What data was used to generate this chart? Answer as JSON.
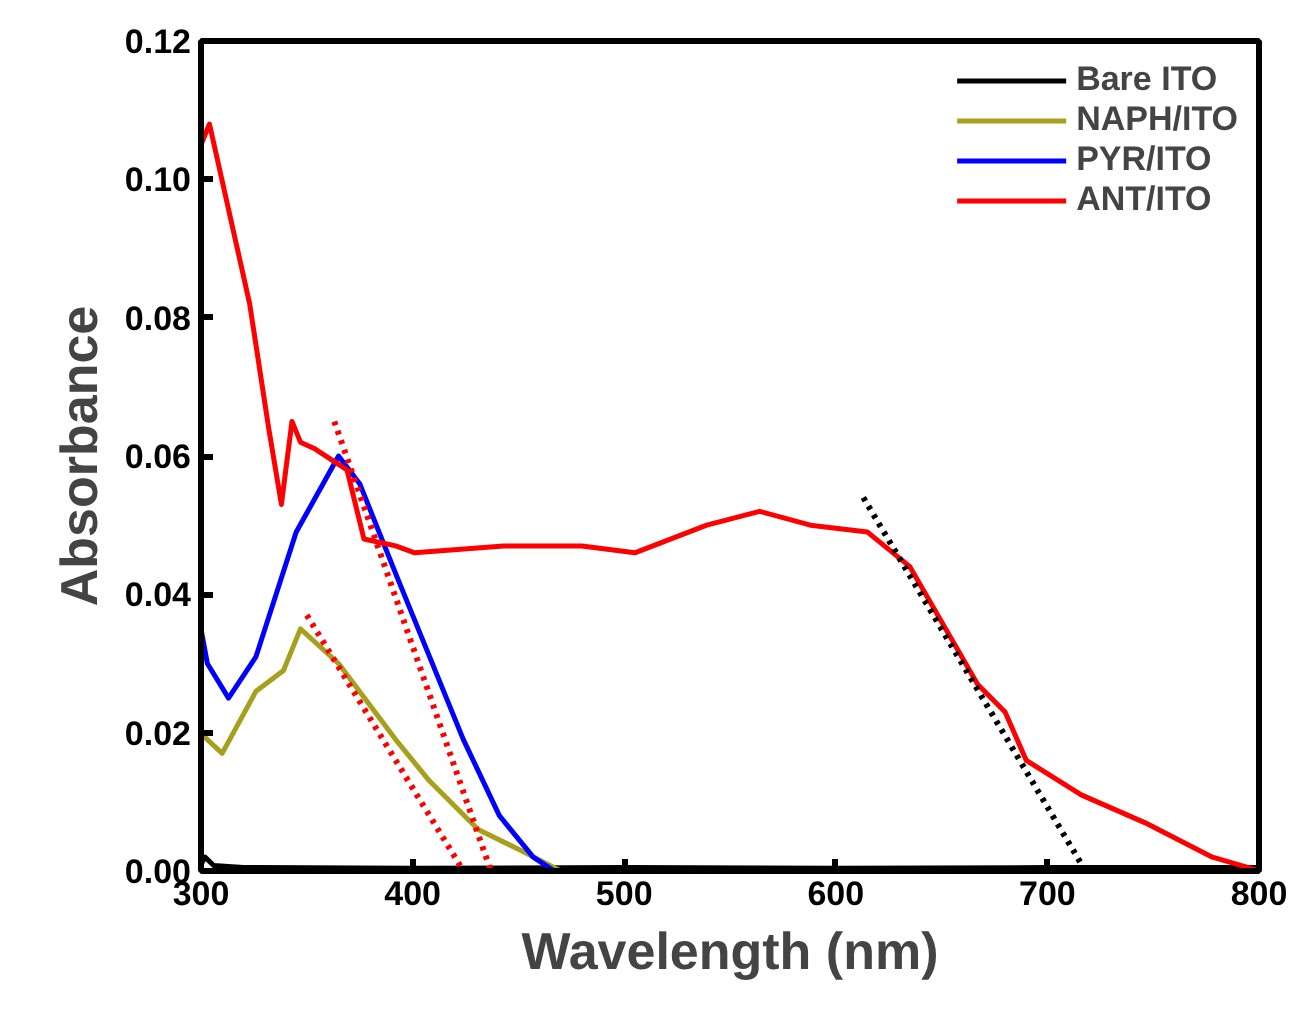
{
  "chart_data": {
    "type": "line",
    "xlabel": "Wavelength (nm)",
    "ylabel": "Absorbance",
    "xlim": [
      300,
      800
    ],
    "ylim": [
      0,
      0.12
    ],
    "xticks": [
      300,
      400,
      500,
      600,
      700,
      800
    ],
    "yticks": [
      {
        "value": 0,
        "label": "0.00"
      },
      {
        "value": 0.02,
        "label": "0.02"
      },
      {
        "value": 0.04,
        "label": "0.04"
      },
      {
        "value": 0.06,
        "label": "0.06"
      },
      {
        "value": 0.08,
        "label": "0.08"
      },
      {
        "value": 0.1,
        "label": "0.10"
      },
      {
        "value": 0.12,
        "label": "0.12"
      }
    ],
    "grid": false,
    "legend": "top right",
    "marker": "none",
    "series": [
      {
        "name": "Bare ITO",
        "color": "#000000",
        "line_style": "solid",
        "x": [
          300,
          302,
          306,
          320,
          400,
          500,
          600,
          700,
          800
        ],
        "values": [
          0.001,
          0.002,
          0.0008,
          0.0005,
          0.0004,
          0.0005,
          0.0004,
          0.0005,
          0.0005
        ]
      },
      {
        "name": "NAPH/ITO",
        "color": "#a6a01c",
        "line_style": "solid",
        "x": [
          300,
          303,
          310,
          326,
          339,
          347,
          365,
          392,
          408,
          431,
          451,
          470
        ],
        "values": [
          0.02,
          0.019,
          0.017,
          0.026,
          0.029,
          0.035,
          0.03,
          0.019,
          0.013,
          0.006,
          0.003,
          0
        ]
      },
      {
        "name": "PYR/ITO",
        "color": "#0000ff",
        "line_style": "solid",
        "x": [
          300,
          303,
          313,
          326,
          345,
          365,
          375,
          392,
          408,
          424,
          441,
          457,
          467
        ],
        "values": [
          0.035,
          0.03,
          0.025,
          0.031,
          0.049,
          0.06,
          0.056,
          0.043,
          0.031,
          0.019,
          0.008,
          0.002,
          0
        ]
      },
      {
        "name": "ANT/ITO",
        "color": "#ff0000",
        "line_style": "solid",
        "x": [
          300,
          304,
          323,
          332,
          338,
          343,
          347,
          354,
          369,
          377,
          392,
          401,
          443,
          480,
          505,
          539,
          564,
          588,
          615,
          635,
          667,
          680,
          690,
          716,
          746,
          778,
          795,
          800
        ],
        "values": [
          0.105,
          0.108,
          0.082,
          0.064,
          0.053,
          0.065,
          0.062,
          0.061,
          0.058,
          0.048,
          0.047,
          0.046,
          0.047,
          0.047,
          0.046,
          0.05,
          0.052,
          0.05,
          0.049,
          0.044,
          0.027,
          0.023,
          0.016,
          0.011,
          0.007,
          0.002,
          0.0005,
          0
        ]
      },
      {
        "color": "#ff0000",
        "line_style": "dotted",
        "x": [
          363,
          437
        ],
        "values": [
          0.065,
          0
        ]
      },
      {
        "color": "#ff0000",
        "line_style": "dotted",
        "x": [
          350,
          424
        ],
        "values": [
          0.037,
          0
        ]
      },
      {
        "color": "#000000",
        "line_style": "dotted",
        "x": [
          613,
          718
        ],
        "values": [
          0.054,
          0
        ]
      }
    ]
  }
}
